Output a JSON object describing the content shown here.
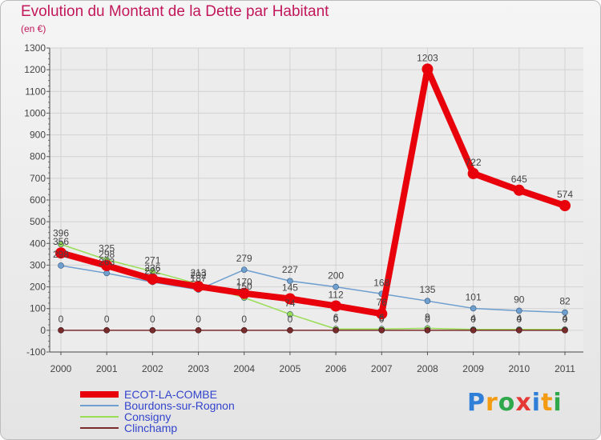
{
  "title": "Evolution du Montant de la Dette par Habitant",
  "subtitle": "(en €)",
  "brand": {
    "letters": [
      "P",
      "r",
      "o",
      "x",
      "i",
      "t",
      "i"
    ],
    "colors": [
      "#2f7fd9",
      "#f39c12",
      "#2ea84a",
      "#e53935",
      "#2f7fd9",
      "#f39c12",
      "#2ea84a"
    ]
  },
  "chart_data": {
    "type": "line",
    "x": [
      "2000",
      "2001",
      "2002",
      "2003",
      "2004",
      "2005",
      "2006",
      "2007",
      "2008",
      "2009",
      "2010",
      "2011"
    ],
    "ylim": [
      -100,
      1300
    ],
    "yticks": [
      -100,
      0,
      100,
      200,
      300,
      400,
      500,
      600,
      700,
      800,
      900,
      1000,
      1100,
      1200,
      1300
    ],
    "grid": true,
    "legend_position": "bottom-left",
    "series": [
      {
        "name": "ECOT-LA-COMBE",
        "color": "#e8000b",
        "values": [
          356,
          298,
          236,
          202,
          170,
          145,
          112,
          76,
          1203,
          722,
          645,
          574
        ]
      },
      {
        "name": "Bourdons-sur-Rognon",
        "color": "#6f9fcf",
        "values": [
          298,
          263,
          222,
          187,
          279,
          227,
          200,
          168,
          135,
          101,
          90,
          82
        ]
      },
      {
        "name": "Consigny",
        "color": "#99dd55",
        "values": [
          396,
          325,
          271,
          213,
          150,
          74,
          6,
          6,
          9,
          4,
          4,
          4
        ]
      },
      {
        "name": "Clinchamp",
        "color": "#7a2b2b",
        "values": [
          0,
          0,
          0,
          0,
          0,
          0,
          0,
          0,
          0,
          0,
          0,
          0
        ]
      }
    ],
    "data_labels": [
      {
        "series": 0,
        "labels": [
          "356",
          "298",
          "236",
          "202",
          "170",
          "145",
          "112",
          "76",
          "1203",
          "722",
          "645",
          "574"
        ]
      },
      {
        "series": 1,
        "labels": [
          "298",
          "263",
          "222",
          "187",
          "279",
          "227",
          "200",
          "168",
          "135",
          "101",
          "90",
          "82"
        ]
      },
      {
        "series": 2,
        "labels": [
          "396",
          "325",
          "271",
          "213",
          "150",
          "74",
          "6",
          "6",
          "9",
          "4",
          "4",
          "4"
        ]
      },
      {
        "series": 3,
        "labels": [
          "0",
          "0",
          "0",
          "0",
          "0",
          "0",
          "0",
          "0",
          "0",
          "0",
          "0",
          "0"
        ]
      }
    ]
  }
}
